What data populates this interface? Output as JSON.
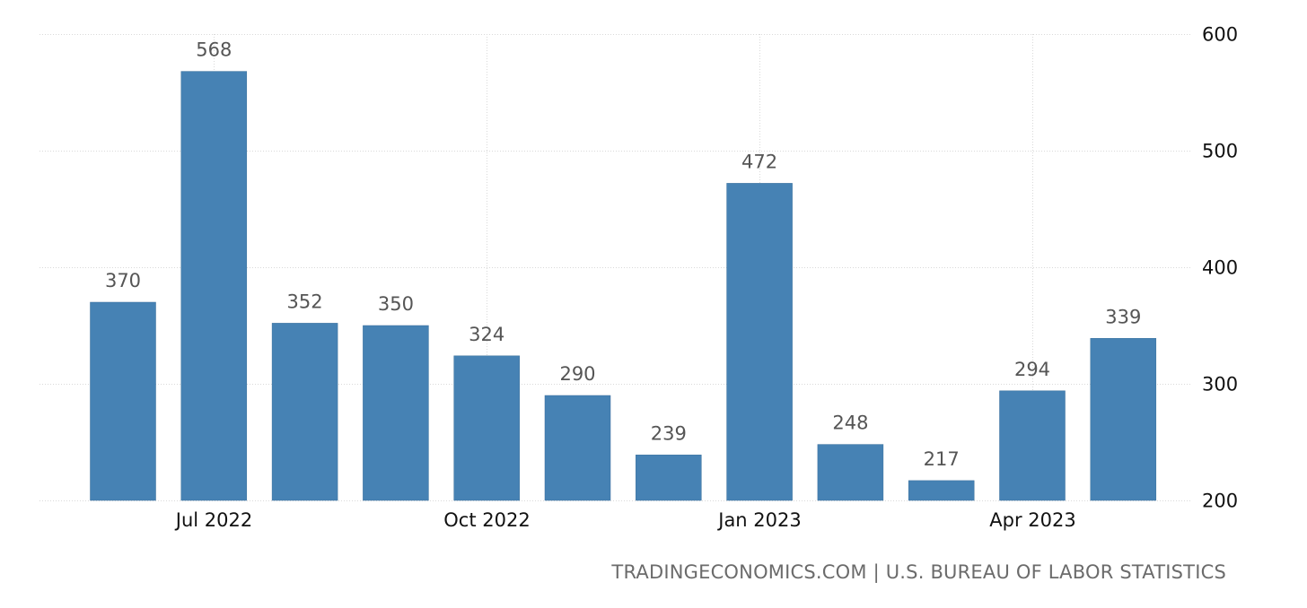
{
  "chart_data": {
    "type": "bar",
    "categories": [
      "Jun 2022",
      "Jul 2022",
      "Aug 2022",
      "Sep 2022",
      "Oct 2022",
      "Nov 2022",
      "Dec 2022",
      "Jan 2023",
      "Feb 2023",
      "Mar 2023",
      "Apr 2023",
      "May 2023"
    ],
    "values": [
      370,
      568,
      352,
      350,
      324,
      290,
      239,
      472,
      248,
      217,
      294,
      339
    ],
    "data_labels": [
      "370",
      "568",
      "352",
      "350",
      "324",
      "290",
      "239",
      "472",
      "248",
      "217",
      "294",
      "339"
    ],
    "ylim": [
      200,
      600
    ],
    "y_ticks": [
      200,
      300,
      400,
      500,
      600
    ],
    "y_tick_labels": [
      "200",
      "300",
      "400",
      "500",
      "600"
    ],
    "x_tick_labels": [
      {
        "label": "Jul 2022",
        "at": "Jul 2022"
      },
      {
        "label": "Oct 2022",
        "at": "Oct 2022"
      },
      {
        "label": "Jan 2023",
        "at": "Jan 2023"
      },
      {
        "label": "Apr 2023",
        "at": "Apr 2023"
      }
    ],
    "y_axis_side": "right",
    "grid": true,
    "bar_color": "#4682b4"
  },
  "source_text": "TRADINGECONOMICS.COM | U.S. BUREAU OF LABOR STATISTICS"
}
